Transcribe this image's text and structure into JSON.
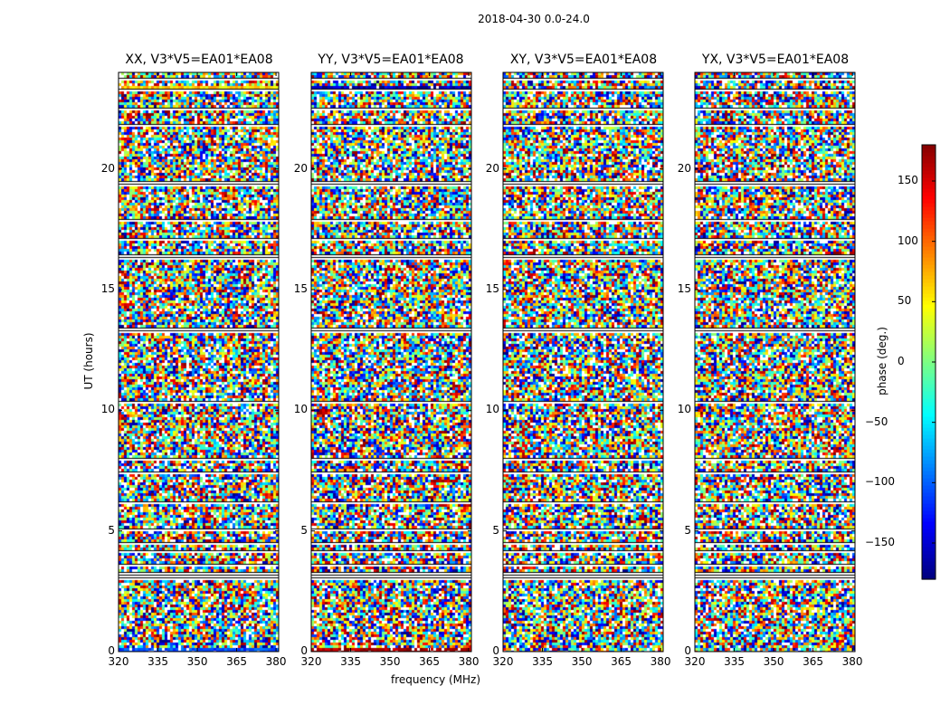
{
  "figure": {
    "suptitle": "2018-04-30 0.0-24.0"
  },
  "chart_data": {
    "type": "heatmap",
    "title": "2018-04-30 0.0-24.0",
    "xlabel": "frequency (MHz)",
    "ylabel": "UT (hours)",
    "xlim": [
      320,
      381
    ],
    "ylim": [
      0,
      24
    ],
    "xticks": [
      320,
      335,
      350,
      365,
      380
    ],
    "yticks": [
      0,
      5,
      10,
      15,
      20
    ],
    "panels": [
      {
        "title": "XX, V3*V5=EA01*EA08",
        "pol": "XX",
        "bottom_band_phase": -110,
        "top_band_phase": 60
      },
      {
        "title": "YY, V3*V5=EA01*EA08",
        "pol": "YY",
        "bottom_band_phase": 165,
        "top_band_phase": -160
      },
      {
        "title": "XY, V3*V5=EA01*EA08",
        "pol": "XY",
        "bottom_band_phase": null,
        "top_band_phase": null
      },
      {
        "title": "YX, V3*V5=EA01*EA08",
        "pol": "YX",
        "bottom_band_phase": null,
        "top_band_phase": null
      }
    ],
    "flagged_hours": [
      [
        3.0,
        3.35
      ],
      [
        3.6,
        3.7
      ],
      [
        4.1,
        4.2
      ],
      [
        4.5,
        4.6
      ],
      [
        5.0,
        5.2
      ],
      [
        6.2,
        6.3
      ],
      [
        7.4,
        7.5
      ],
      [
        8.0,
        8.1
      ],
      [
        10.3,
        10.45
      ],
      [
        11.4,
        11.5
      ],
      [
        13.3,
        13.45
      ],
      [
        16.3,
        16.55
      ],
      [
        17.1,
        17.15
      ],
      [
        17.9,
        18.0
      ],
      [
        19.35,
        19.55
      ],
      [
        21.8,
        21.9
      ],
      [
        22.5,
        22.6
      ],
      [
        23.3,
        23.4
      ],
      [
        23.7,
        23.8
      ]
    ],
    "colorbar": {
      "label": "phase (deg.)",
      "range": [
        -180,
        180
      ],
      "ticks": [
        -150,
        -100,
        -50,
        0,
        50,
        100,
        150
      ],
      "colormap": "jet"
    }
  }
}
